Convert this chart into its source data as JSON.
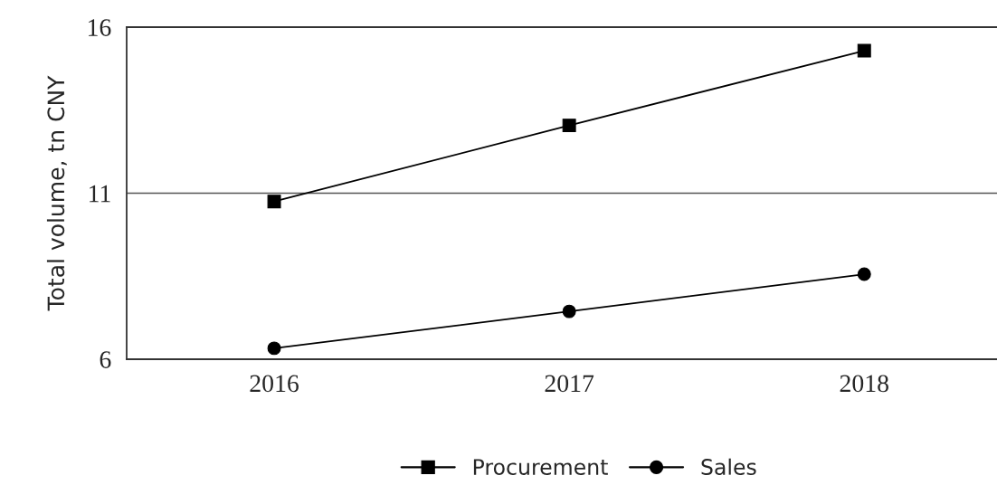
{
  "chart_data": {
    "type": "line",
    "ylabel": "Total volume, tn CNY",
    "categories": [
      "2016",
      "2017",
      "2018"
    ],
    "series": [
      {
        "name": "Procurement",
        "color": "#000000",
        "marker": "square",
        "values": [
          10.75,
          13.04,
          15.29
        ]
      },
      {
        "name": "Sales",
        "color": "#000000",
        "marker": "circle",
        "values": [
          6.33,
          7.44,
          8.56
        ]
      }
    ],
    "ylim": [
      6,
      16
    ],
    "yticks": [
      6,
      11,
      16
    ],
    "grid": "y",
    "legend": "bottom"
  }
}
